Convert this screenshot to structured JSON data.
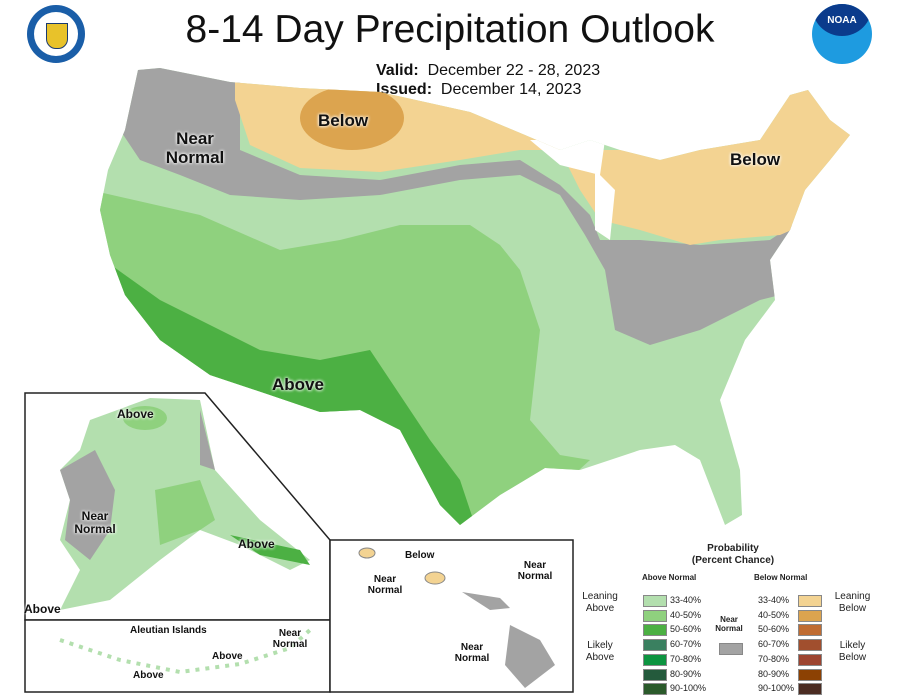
{
  "title": "8-14 Day Precipitation Outlook",
  "valid_label": "Valid:",
  "valid": "December 22 - 28, 2023",
  "issued_label": "Issued:",
  "issued": "December 14, 2023",
  "logos": {
    "left": "department-of-commerce-seal",
    "right": "noaa-logo",
    "noaa_text": "NOAA"
  },
  "colors": {
    "near_normal": "#a3a3a3",
    "above_33_40": "#b3dfae",
    "above_40_50": "#8fd17e",
    "above_50_60": "#4cb043",
    "below_33_40": "#f3d392",
    "below_40_50": "#dca44f"
  },
  "map_labels": {
    "conus_below_north": "Below",
    "conus_near_normal": "Near Normal",
    "conus_below_ne": "Below",
    "conus_above": "Above",
    "ak_above_n": "Above",
    "ak_near_normal": "Near Normal",
    "ak_above_se": "Above",
    "ak_above_sw": "Above",
    "aleutian_title": "Aleutian Islands",
    "aleutian_near_normal": "Near Normal",
    "aleutian_above1": "Above",
    "aleutian_above2": "Above",
    "hi_below": "Below",
    "hi_near1": "Near Normal",
    "hi_near2": "Near Normal",
    "hi_near3": "Near Normal"
  },
  "legend": {
    "title1": "Probability",
    "title2": "(Percent Chance)",
    "above_header": "Above Normal",
    "below_header": "Below Normal",
    "leaning_above": "Leaning Above",
    "likely_above": "Likely Above",
    "leaning_below": "Leaning Below",
    "likely_below": "Likely Below",
    "near_normal": "Near Normal",
    "above": [
      {
        "range": "33-40%",
        "color": "#b3dfae"
      },
      {
        "range": "40-50%",
        "color": "#8fd17e"
      },
      {
        "range": "50-60%",
        "color": "#4cb043"
      },
      {
        "range": "60-70%",
        "color": "#3a8060"
      },
      {
        "range": "70-80%",
        "color": "#0d9440"
      },
      {
        "range": "80-90%",
        "color": "#245a3c"
      },
      {
        "range": "90-100%",
        "color": "#2b5a2b"
      }
    ],
    "below": [
      {
        "range": "33-40%",
        "color": "#f3d392"
      },
      {
        "range": "40-50%",
        "color": "#dca44f"
      },
      {
        "range": "50-60%",
        "color": "#bf6c32"
      },
      {
        "range": "60-70%",
        "color": "#a14f2e"
      },
      {
        "range": "70-80%",
        "color": "#9d4430"
      },
      {
        "range": "80-90%",
        "color": "#8c4103"
      },
      {
        "range": "90-100%",
        "color": "#4b2c22"
      }
    ],
    "near_color": "#a3a3a3"
  }
}
